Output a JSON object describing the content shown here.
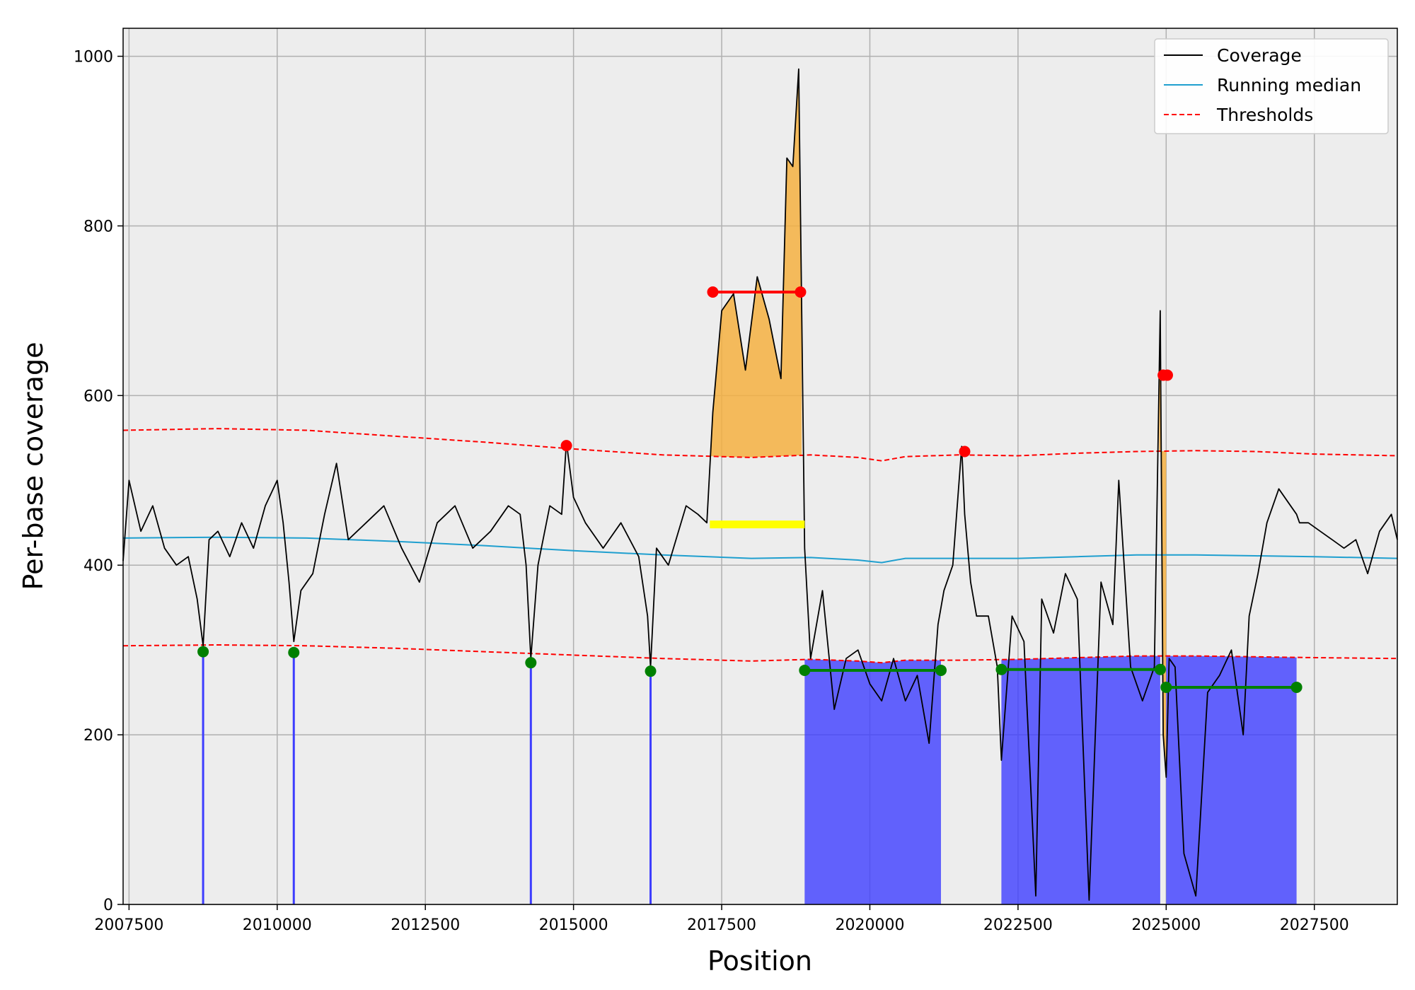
{
  "chart_data": {
    "type": "line",
    "title": "",
    "xlabel": "Position",
    "ylabel": "Per-base coverage",
    "xlim": [
      2007400,
      2028900
    ],
    "ylim": [
      0,
      1033
    ],
    "xticks": [
      2007500,
      2010000,
      2012500,
      2015000,
      2017500,
      2020000,
      2022500,
      2025000,
      2027500
    ],
    "yticks": [
      0,
      200,
      400,
      600,
      800,
      1000
    ],
    "grid": true,
    "legend_position": "top-right",
    "colors": {
      "background": "#ededed",
      "coverage": "#000000",
      "running_median": "#1f9fcf",
      "thresholds": "#ff0000",
      "gain_fill": "#f5b041",
      "loss_fill": "#3d3dff",
      "loss_marker": "#008000",
      "gain_marker": "#ff0000",
      "highlight_bar": "#ffff00"
    },
    "series": [
      {
        "name": "Coverage",
        "x": [
          2007400,
          2007500,
          2007700,
          2007900,
          2008100,
          2008300,
          2008500,
          2008650,
          2008750,
          2008850,
          2009000,
          2009200,
          2009400,
          2009600,
          2009800,
          2010000,
          2010100,
          2010200,
          2010280,
          2010400,
          2010600,
          2010800,
          2011000,
          2011200,
          2011500,
          2011800,
          2012100,
          2012400,
          2012700,
          2013000,
          2013300,
          2013600,
          2013900,
          2014100,
          2014200,
          2014280,
          2014400,
          2014600,
          2014800,
          2014880,
          2015000,
          2015200,
          2015500,
          2015800,
          2016100,
          2016250,
          2016300,
          2016400,
          2016600,
          2016900,
          2017100,
          2017250,
          2017350,
          2017500,
          2017700,
          2017900,
          2018100,
          2018300,
          2018500,
          2018600,
          2018700,
          2018800,
          2018830,
          2018900,
          2019000,
          2019200,
          2019400,
          2019600,
          2019800,
          2020000,
          2020200,
          2020400,
          2020600,
          2020800,
          2021000,
          2021150,
          2021250,
          2021400,
          2021550,
          2021600,
          2021700,
          2021800,
          2022000,
          2022150,
          2022220,
          2022400,
          2022600,
          2022800,
          2022900,
          2023100,
          2023300,
          2023500,
          2023700,
          2023900,
          2024100,
          2024200,
          2024400,
          2024600,
          2024800,
          2024900,
          2024950,
          2025000,
          2025050,
          2025150,
          2025300,
          2025500,
          2025700,
          2025900,
          2026100,
          2026300,
          2026400,
          2026550,
          2026700,
          2026900,
          2027100,
          2027200,
          2027250,
          2027400,
          2027600,
          2027800,
          2028000,
          2028200,
          2028400,
          2028600,
          2028800,
          2028900
        ],
        "values": [
          405,
          500,
          440,
          470,
          420,
          400,
          410,
          360,
          305,
          430,
          440,
          410,
          450,
          420,
          470,
          500,
          450,
          380,
          310,
          370,
          390,
          460,
          520,
          430,
          450,
          470,
          420,
          380,
          450,
          470,
          420,
          440,
          470,
          460,
          400,
          290,
          400,
          470,
          460,
          545,
          480,
          450,
          420,
          450,
          410,
          340,
          280,
          420,
          400,
          470,
          460,
          450,
          580,
          700,
          720,
          630,
          740,
          690,
          620,
          880,
          870,
          985,
          810,
          420,
          290,
          370,
          230,
          290,
          300,
          260,
          240,
          290,
          240,
          270,
          190,
          330,
          370,
          400,
          540,
          460,
          380,
          340,
          340,
          280,
          170,
          340,
          310,
          10,
          360,
          320,
          390,
          360,
          5,
          380,
          330,
          500,
          280,
          240,
          280,
          700,
          200,
          150,
          290,
          280,
          60,
          10,
          250,
          270,
          300,
          200,
          340,
          390,
          450,
          490,
          470,
          460,
          450,
          450,
          440,
          430,
          420,
          430,
          390,
          440,
          460,
          430
        ]
      },
      {
        "name": "Running median",
        "x": [
          2007400,
          2009000,
          2010500,
          2012000,
          2013500,
          2015000,
          2016500,
          2018000,
          2019000,
          2019800,
          2020200,
          2020600,
          2021500,
          2022500,
          2023500,
          2024500,
          2025500,
          2026500,
          2027500,
          2028900
        ],
        "values": [
          432,
          433,
          432,
          428,
          423,
          417,
          412,
          408,
          409,
          406,
          403,
          408,
          408,
          408,
          410,
          412,
          412,
          411,
          410,
          408
        ]
      },
      {
        "name": "Thresholds",
        "x": [
          2007400,
          2009000,
          2010500,
          2012000,
          2013500,
          2015000,
          2016500,
          2018000,
          2019000,
          2019800,
          2020200,
          2020600,
          2021500,
          2022500,
          2023500,
          2024500,
          2025500,
          2026500,
          2027500,
          2028900
        ],
        "upper": [
          559,
          561,
          559,
          552,
          545,
          537,
          530,
          527,
          530,
          527,
          523,
          528,
          530,
          529,
          532,
          534,
          535,
          534,
          531,
          529
        ],
        "lower": [
          305,
          306,
          305,
          302,
          298,
          294,
          290,
          287,
          289,
          287,
          285,
          288,
          288,
          289,
          291,
          293,
          293,
          292,
          291,
          290
        ]
      }
    ],
    "gain_regions": [
      [
        2017300,
        2018850
      ],
      [
        2024880,
        2025000
      ]
    ],
    "loss_regions": [
      [
        2018900,
        2021200
      ],
      [
        2022220,
        2024900
      ],
      [
        2025000,
        2027200
      ]
    ],
    "loss_spikes": [
      {
        "x": 2008750,
        "y": 298
      },
      {
        "x": 2010280,
        "y": 297
      },
      {
        "x": 2014280,
        "y": 285
      },
      {
        "x": 2016300,
        "y": 275
      }
    ],
    "gain_markers": [
      {
        "x": 2014880,
        "y": 541
      },
      {
        "x": 2017350,
        "y": 722
      },
      {
        "x": 2018830,
        "y": 722
      },
      {
        "x": 2021600,
        "y": 534
      },
      {
        "x": 2024950,
        "y": 624
      },
      {
        "x": 2025020,
        "y": 624
      }
    ],
    "gain_segments": [
      {
        "x0": 2017350,
        "x1": 2018830,
        "y": 722
      }
    ],
    "loss_segments": [
      {
        "x0": 2018900,
        "x1": 2021200,
        "y": 276
      },
      {
        "x0": 2022220,
        "x1": 2024900,
        "y": 277
      },
      {
        "x0": 2025000,
        "x1": 2027200,
        "y": 256
      }
    ],
    "highlight_bar": {
      "x0": 2017300,
      "x1": 2018900,
      "y": 448
    },
    "legend": [
      "Coverage",
      "Running median",
      "Thresholds"
    ]
  }
}
